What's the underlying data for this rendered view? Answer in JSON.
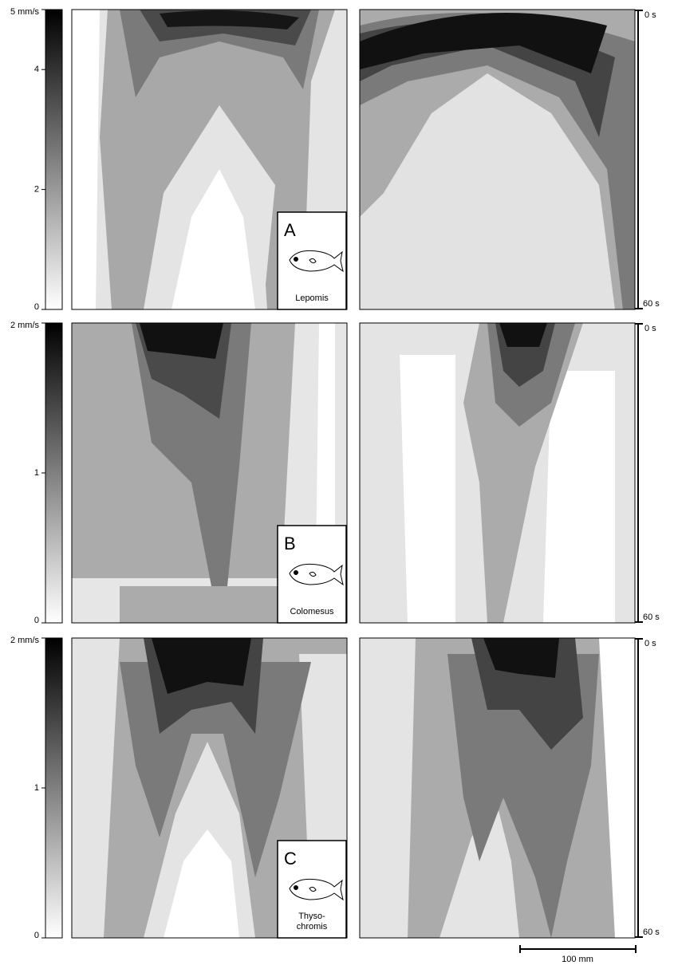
{
  "panels": [
    {
      "label": "A",
      "species": [
        "Lepomis"
      ],
      "colorbar_range": [
        0,
        5
      ],
      "colorbar_ticks": [
        {
          "value": 5,
          "label": "5 mm/s"
        },
        4,
        2,
        0
      ],
      "time_start": "0 s",
      "time_end": "60 s"
    },
    {
      "label": "B",
      "species": [
        "Colomesus"
      ],
      "colorbar_range": [
        0,
        2
      ],
      "colorbar_ticks": [
        {
          "value": 2,
          "label": "2 mm/s"
        },
        1,
        0
      ],
      "time_start": "0 s",
      "time_end": "60 s"
    },
    {
      "label": "C",
      "species": [
        "Thyso-",
        "chromis"
      ],
      "colorbar_range": [
        0,
        2
      ],
      "colorbar_ticks": [
        {
          "value": 2,
          "label": "2 mm/s"
        },
        1,
        0
      ],
      "time_start": "0 s",
      "time_end": "60 s"
    }
  ],
  "scale_bar": "100 mm"
}
